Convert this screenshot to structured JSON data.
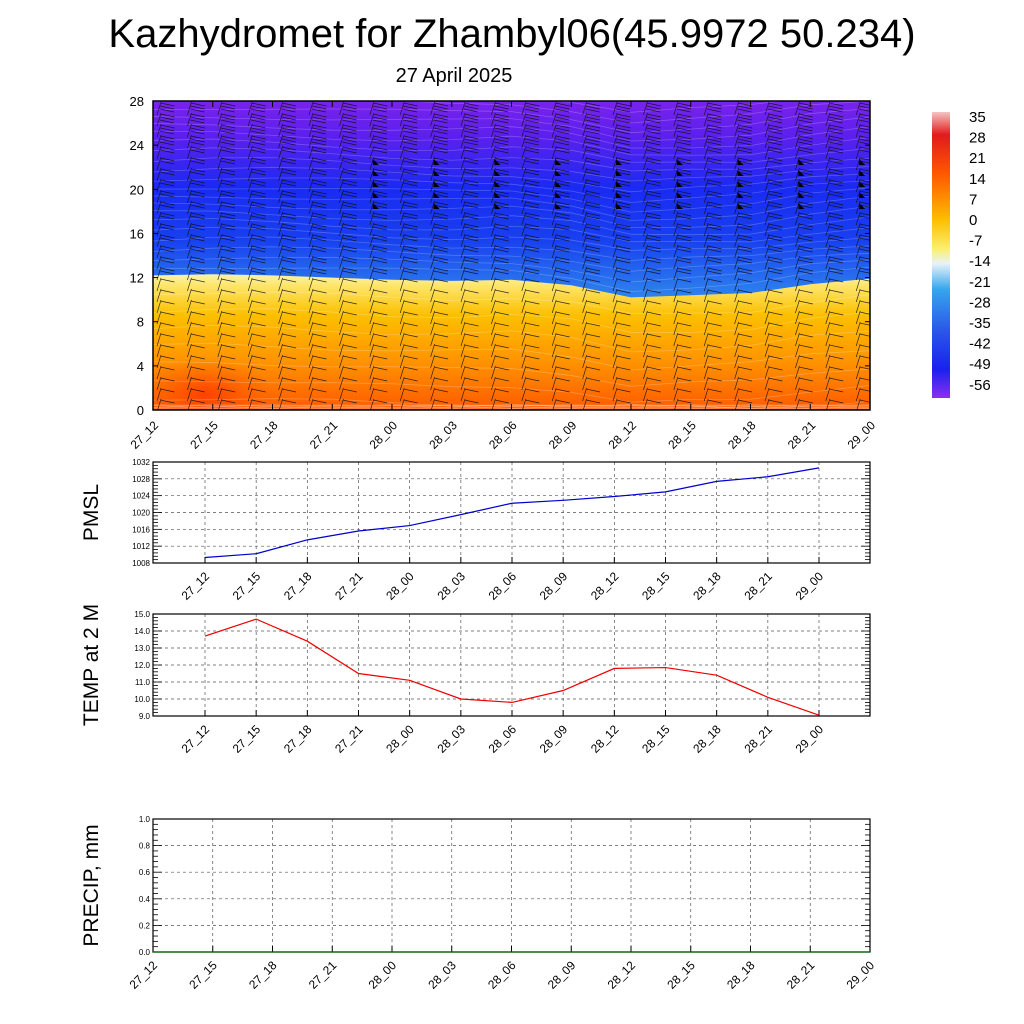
{
  "page": {
    "title": "Kazhydromet for Zhambyl06(45.9972 50.234)",
    "date": "27 April 2025"
  },
  "chart_data": [
    {
      "type": "heatmap",
      "title": "",
      "x_ticks": [
        "27_12",
        "27_15",
        "27_18",
        "27_21",
        "28_00",
        "28_03",
        "28_06",
        "28_09",
        "28_12",
        "28_15",
        "28_18",
        "28_21",
        "29_00"
      ],
      "y_ticks": [
        0,
        4,
        8,
        12,
        16,
        20,
        24,
        28
      ],
      "ylim": [
        0,
        28
      ],
      "colorbar_labels": [
        35,
        28,
        21,
        14,
        7,
        0,
        -7,
        -14,
        -21,
        -28,
        -35,
        -42,
        -49,
        -56
      ],
      "freezing_level": [
        12.2,
        12.3,
        12.2,
        12.0,
        11.8,
        11.7,
        11.8,
        11.3,
        10.2,
        10.4,
        10.6,
        11.4,
        11.9
      ],
      "wind_barbs": "present",
      "colors": {
        "cold": "#6a1be8",
        "mid_cold": "#1a3cf0",
        "cool": "#35a6ef",
        "freezing": "#f4f2bf",
        "warm": "#fcc000",
        "hot": "#ff5a00"
      }
    },
    {
      "type": "line",
      "ylabel": "PMSL",
      "x_ticks": [
        "27_12",
        "27_15",
        "27_18",
        "27_21",
        "28_00",
        "28_03",
        "28_06",
        "28_09",
        "28_12",
        "28_15",
        "28_18",
        "28_21",
        "29_00"
      ],
      "y_ticks": [
        1008,
        1012,
        1016,
        1020,
        1024,
        1028,
        1032
      ],
      "ylim": [
        1008,
        1032
      ],
      "values": [
        1009.3,
        1010.2,
        1013.5,
        1015.6,
        1016.9,
        1019.5,
        1022.2,
        1022.9,
        1023.8,
        1024.9,
        1027.4,
        1028.5,
        1030.6
      ],
      "color": "#0000cc",
      "grid": true
    },
    {
      "type": "line",
      "ylabel": "TEMP at 2 M",
      "x_ticks": [
        "27_12",
        "27_15",
        "27_18",
        "27_21",
        "28_00",
        "28_03",
        "28_06",
        "28_09",
        "28_12",
        "28_15",
        "28_18",
        "28_21",
        "29_00"
      ],
      "y_ticks": [
        "9.0",
        "10.0",
        "11.0",
        "12.0",
        "13.0",
        "14.0",
        "15.0"
      ],
      "ylim": [
        9,
        15
      ],
      "values": [
        13.7,
        14.7,
        13.4,
        11.5,
        11.1,
        10.0,
        9.8,
        10.5,
        11.8,
        11.85,
        11.4,
        10.1,
        9.05
      ],
      "color": "#ee0000",
      "grid": true
    },
    {
      "type": "line",
      "ylabel": "PRECIP, mm",
      "x_ticks": [
        "27_12",
        "27_15",
        "27_18",
        "27_21",
        "28_00",
        "28_03",
        "28_06",
        "28_09",
        "28_12",
        "28_15",
        "28_18",
        "28_21",
        "29_00"
      ],
      "y_ticks": [
        "0.0",
        "0.2",
        "0.4",
        "0.6",
        "0.8",
        "1.0"
      ],
      "ylim": [
        0,
        1
      ],
      "values": [
        0,
        0,
        0,
        0,
        0,
        0,
        0,
        0,
        0,
        0,
        0,
        0,
        0
      ],
      "color": "#006600",
      "grid": true
    }
  ]
}
